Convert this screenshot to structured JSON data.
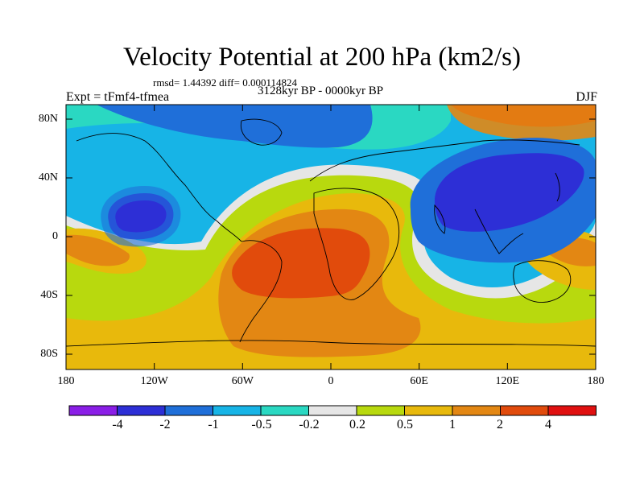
{
  "header": {
    "title": "Velocity Potential at 200 hPa (km2/s)",
    "rmsd_line": "rmsd= 1.44392 diff= 0.000114824",
    "experiment": "Expt = tFmf4-tfmea",
    "period": "3128kyr BP - 0000kyr BP",
    "season": "DJF"
  },
  "axes": {
    "lat_ticks": [
      "80N",
      "40N",
      "0",
      "40S",
      "80S"
    ],
    "lon_ticks": [
      "180",
      "120W",
      "60W",
      "0",
      "60E",
      "120E",
      "180"
    ]
  },
  "colorbar": {
    "labels": [
      "-4",
      "-2",
      "-1",
      "-0.5",
      "-0.2",
      "0.2",
      "0.5",
      "1",
      "2",
      "4"
    ],
    "colors": [
      "#8a1ee6",
      "#2d2fd6",
      "#1f6fd9",
      "#17b4e6",
      "#2ad8c2",
      "#e6e6e6",
      "#b8d90e",
      "#e8b90c",
      "#e38713",
      "#e14b0c",
      "#e01010"
    ]
  },
  "map": {
    "background_color": "#17b4e6",
    "projection": "cylindrical equidistant",
    "lon_range": [
      -180,
      180
    ],
    "lat_range": [
      -90,
      90
    ]
  }
}
